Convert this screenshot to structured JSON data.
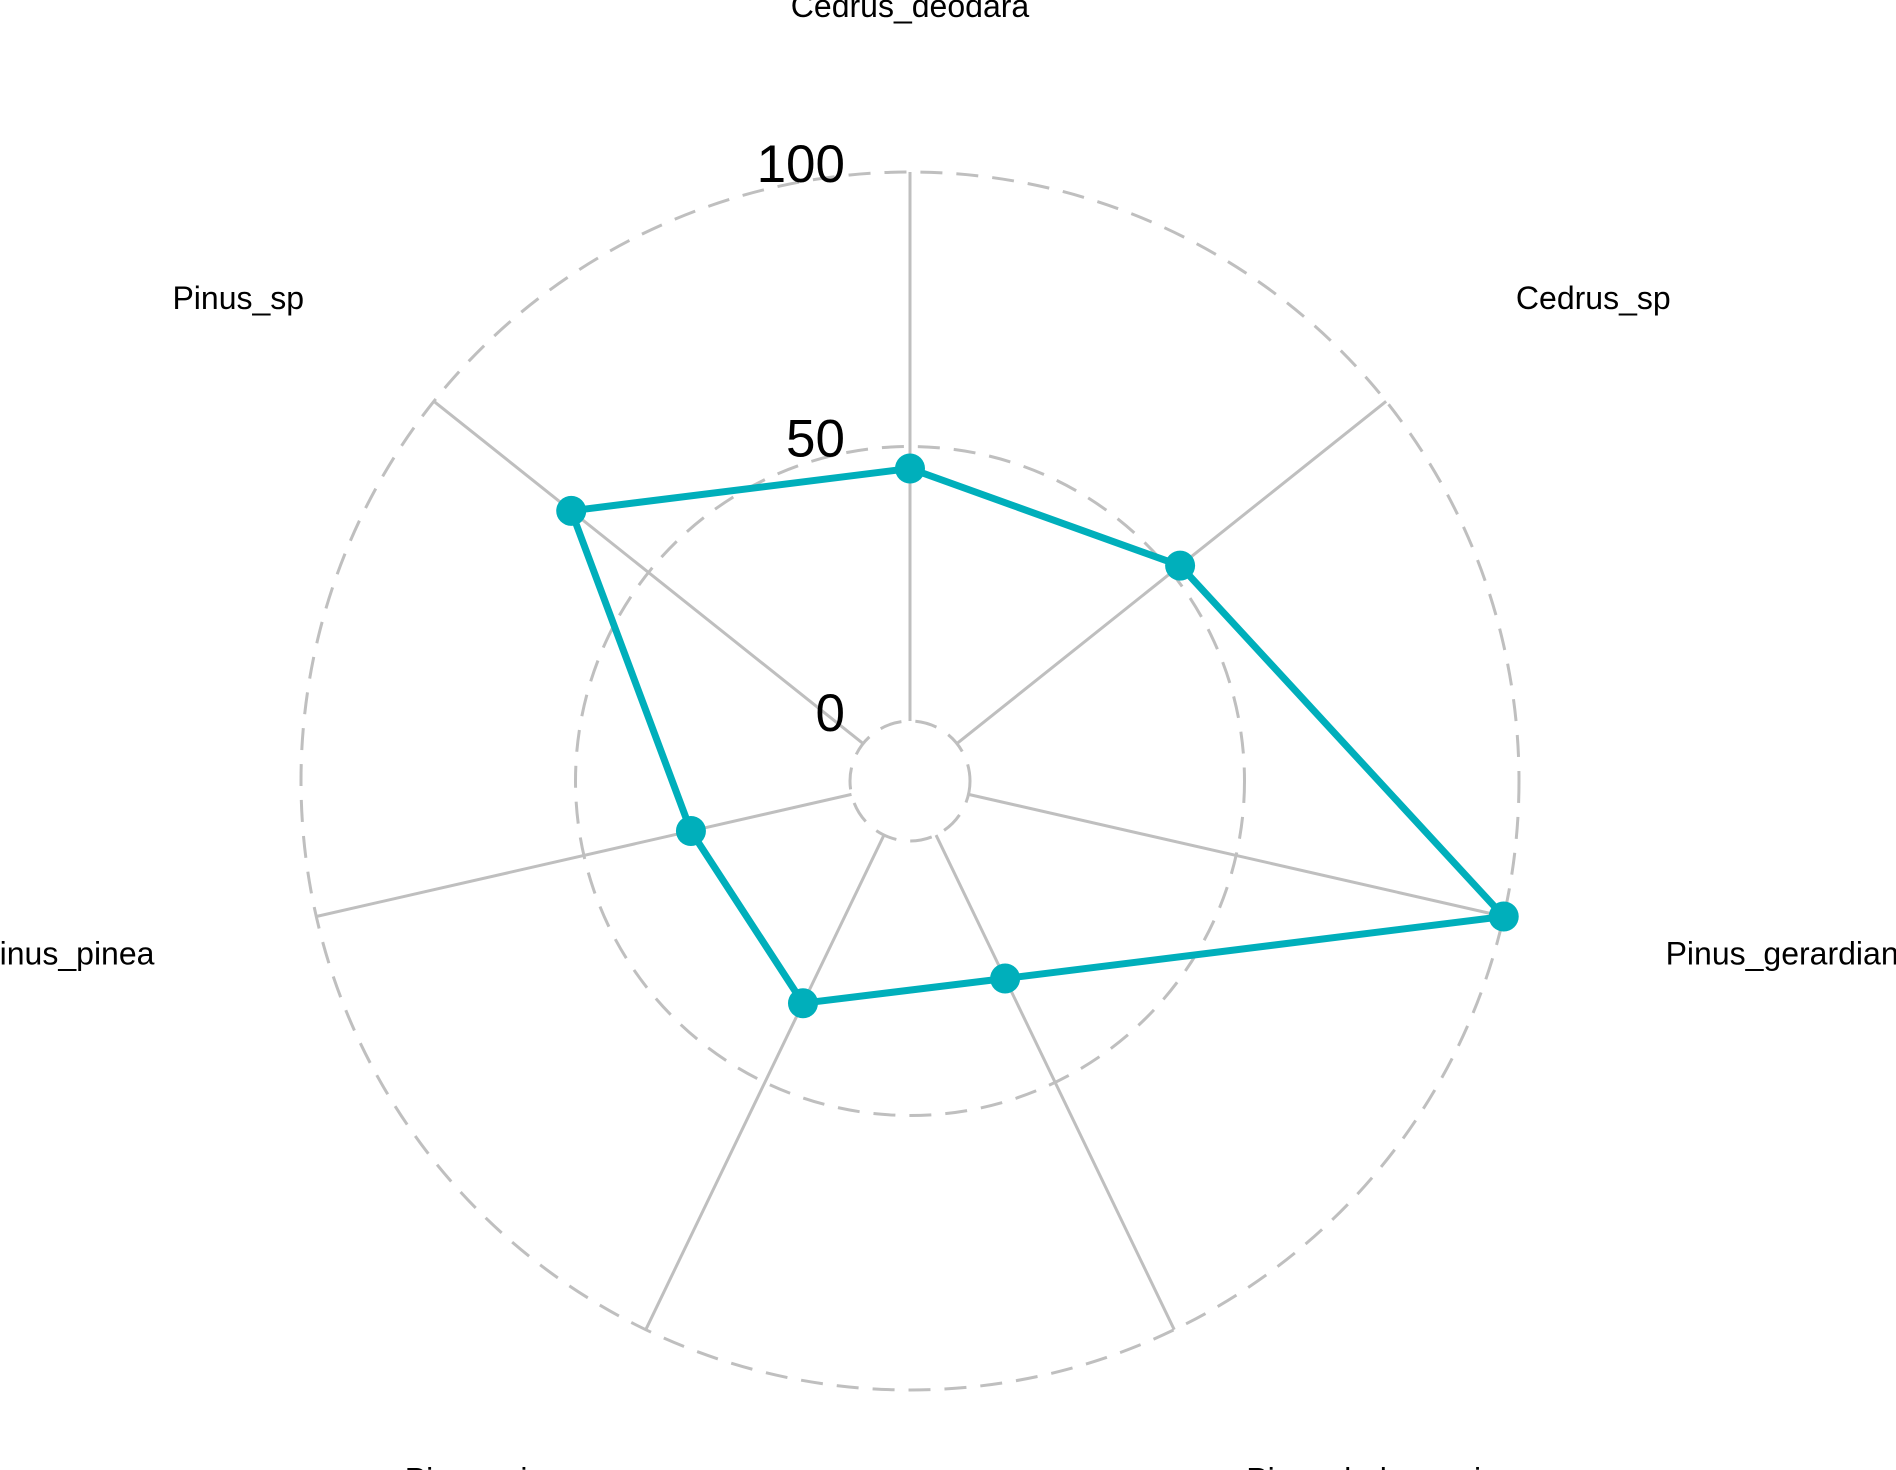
{
  "chart_data": {
    "type": "radar",
    "title": "",
    "axes": [
      "Cedrus_deodara",
      "Cedrus_sp",
      "Pinus_gerardiana",
      "Pinus_halepensis",
      "Pinus_nigra",
      "Pinus_pinea",
      "Pinus_sp"
    ],
    "series": [
      {
        "values": [
          46,
          52,
          100,
          29,
          34,
          30,
          68
        ]
      }
    ],
    "grid_values": [
      0,
      50,
      100
    ],
    "grid_labels": [
      "0",
      "50",
      "100"
    ],
    "range": [
      0,
      100
    ],
    "grid_style": "dashed circles",
    "legend": "none",
    "colors": {
      "series": "#00AFBB",
      "grid": "#BFBFBF",
      "text": "#000000"
    }
  }
}
